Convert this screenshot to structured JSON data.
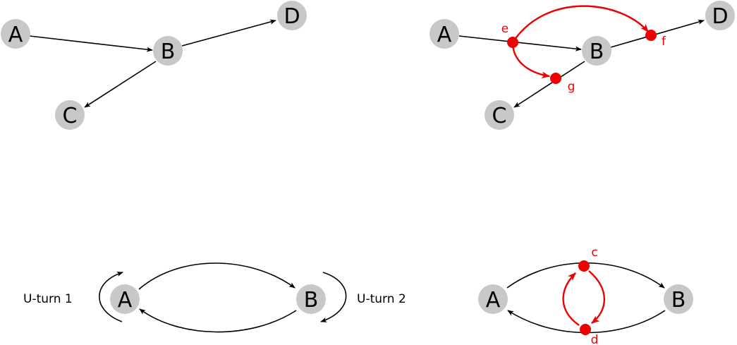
{
  "colors": {
    "node": "#c8c8c8",
    "edge": "#000000",
    "highlight": "#ee0000"
  },
  "diagrams": {
    "top_left": {
      "nodes": {
        "A": "A",
        "B": "B",
        "C": "C",
        "D": "D"
      }
    },
    "top_right": {
      "nodes": {
        "A": "A",
        "B": "B",
        "C": "C",
        "D": "D"
      },
      "points": {
        "e": "e",
        "f": "f",
        "g": "g"
      }
    },
    "bottom_left": {
      "nodes": {
        "A": "A",
        "B": "B"
      },
      "uturn1": "U-turn 1",
      "uturn2": "U-turn 2"
    },
    "bottom_right": {
      "nodes": {
        "A": "A",
        "B": "B"
      },
      "points": {
        "c": "c",
        "d": "d"
      }
    }
  }
}
